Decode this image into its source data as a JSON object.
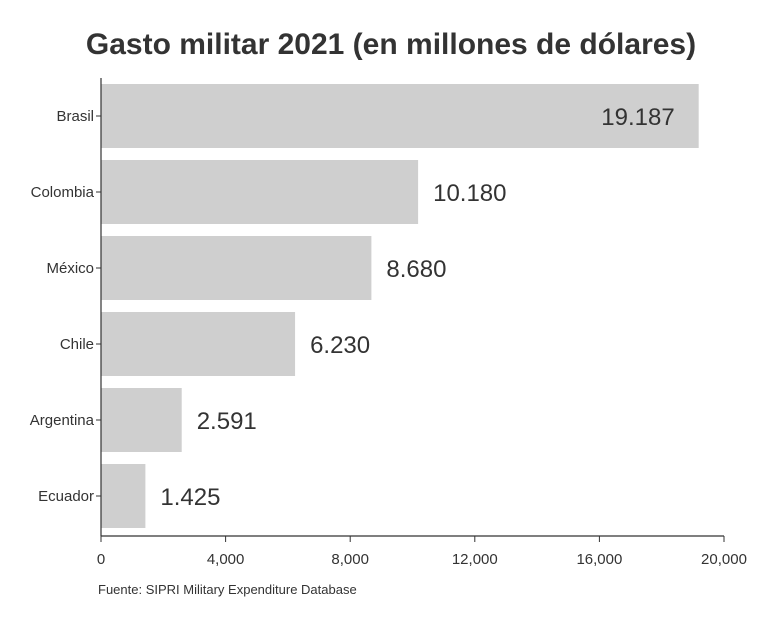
{
  "chart_data": {
    "type": "bar",
    "orientation": "horizontal",
    "title": "Gasto militar 2021 (en millones de dólares)",
    "categories": [
      "Brasil",
      "Colombia",
      "México",
      "Chile",
      "Argentina",
      "Ecuador"
    ],
    "values": [
      19187,
      10180,
      8680,
      6230,
      2591,
      1425
    ],
    "value_labels": [
      "19.187",
      "10.180",
      "8.680",
      "6.230",
      "2.591",
      "1.425"
    ],
    "xlabel": "",
    "ylabel": "",
    "xlim": [
      0,
      20000
    ],
    "x_ticks": [
      0,
      4000,
      8000,
      12000,
      16000,
      20000
    ],
    "x_tick_labels": [
      "0",
      "4,000",
      "8,000",
      "12,000",
      "16,000",
      "20,000"
    ],
    "grid": false,
    "legend": "none",
    "bar_color": "#cfcfcf",
    "text_color": "#333333",
    "source": "Fuente: SIPRI Military Expenditure Database"
  }
}
